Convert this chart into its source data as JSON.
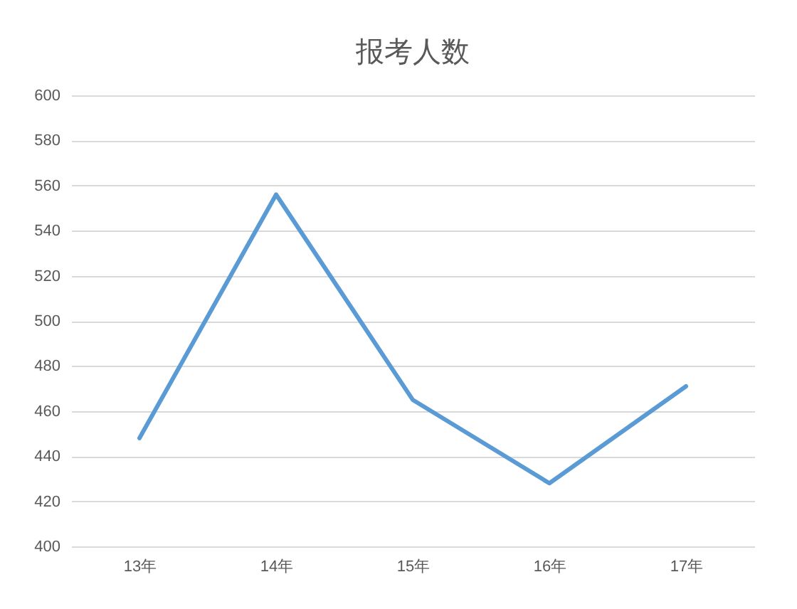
{
  "chart_data": {
    "type": "line",
    "title": "报考人数",
    "categories": [
      "13年",
      "14年",
      "15年",
      "16年",
      "17年"
    ],
    "series": [
      {
        "color": "#5b9bd5",
        "values": [
          448,
          556,
          465,
          428,
          471
        ]
      }
    ],
    "ylim": [
      400,
      600
    ],
    "yticks": [
      400,
      420,
      440,
      460,
      480,
      500,
      520,
      540,
      560,
      580,
      600
    ],
    "grid": "y",
    "line_style": "solid"
  }
}
